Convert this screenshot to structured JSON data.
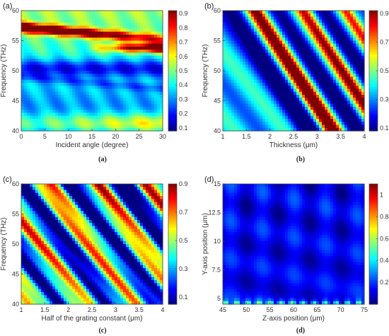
{
  "chart_data": [
    {
      "type": "heatmap",
      "panel_label": "(a)",
      "caption": "(a)",
      "xlabel": "Incident angle (degree)",
      "ylabel": "Frequency (THz)",
      "xlim": [
        0,
        30
      ],
      "ylim": [
        40,
        60
      ],
      "xticks": [
        0,
        5,
        10,
        15,
        20,
        25,
        30
      ],
      "yticks": [
        40,
        45,
        50,
        55,
        60
      ],
      "colorbar": {
        "min": 0.08,
        "max": 0.92,
        "ticks": [
          0.1,
          0.2,
          0.3,
          0.4,
          0.5,
          0.6,
          0.7,
          0.8,
          0.9
        ]
      }
    },
    {
      "type": "heatmap",
      "panel_label": "(b)",
      "caption": "(b)",
      "xlabel": "Thickness (μm)",
      "ylabel": "Frequency (THz)",
      "xlim": [
        1,
        4
      ],
      "ylim": [
        40,
        60
      ],
      "xticks": [
        1,
        1.5,
        2,
        2.5,
        3,
        3.5,
        4
      ],
      "yticks": [
        40,
        45,
        50,
        55,
        60
      ],
      "colorbar": {
        "min": 0.08,
        "max": 0.92,
        "ticks": [
          0.1,
          0.3,
          0.5,
          0.7,
          0.9
        ]
      }
    },
    {
      "type": "heatmap",
      "panel_label": "(c)",
      "caption": "(c)",
      "xlabel": "Half of the grating constant (μm)",
      "ylabel": "Frequency (THz)",
      "xlim": [
        1,
        4
      ],
      "ylim": [
        40,
        60
      ],
      "xticks": [
        1,
        1.5,
        2,
        2.5,
        3,
        3.5,
        4
      ],
      "yticks": [
        40,
        45,
        50,
        55,
        60
      ],
      "colorbar": {
        "min": 0.05,
        "max": 0.9,
        "ticks": [
          0.1,
          0.3,
          0.5,
          0.7,
          0.9
        ]
      }
    },
    {
      "type": "heatmap",
      "panel_label": "(d)",
      "caption": "(d)",
      "xlabel": "Z-axis position (μm)",
      "ylabel": "Y-axis position (μm)",
      "xlim": [
        45,
        75
      ],
      "ylim": [
        4.5,
        15
      ],
      "xticks": [
        45,
        50,
        55,
        60,
        65,
        70,
        75
      ],
      "yticks": [
        5,
        7.5,
        10,
        12.5,
        15
      ],
      "colorbar": {
        "min": 0.0,
        "max": 1.1,
        "ticks": [
          0.2,
          0.4,
          0.6,
          0.8,
          1
        ]
      }
    }
  ]
}
